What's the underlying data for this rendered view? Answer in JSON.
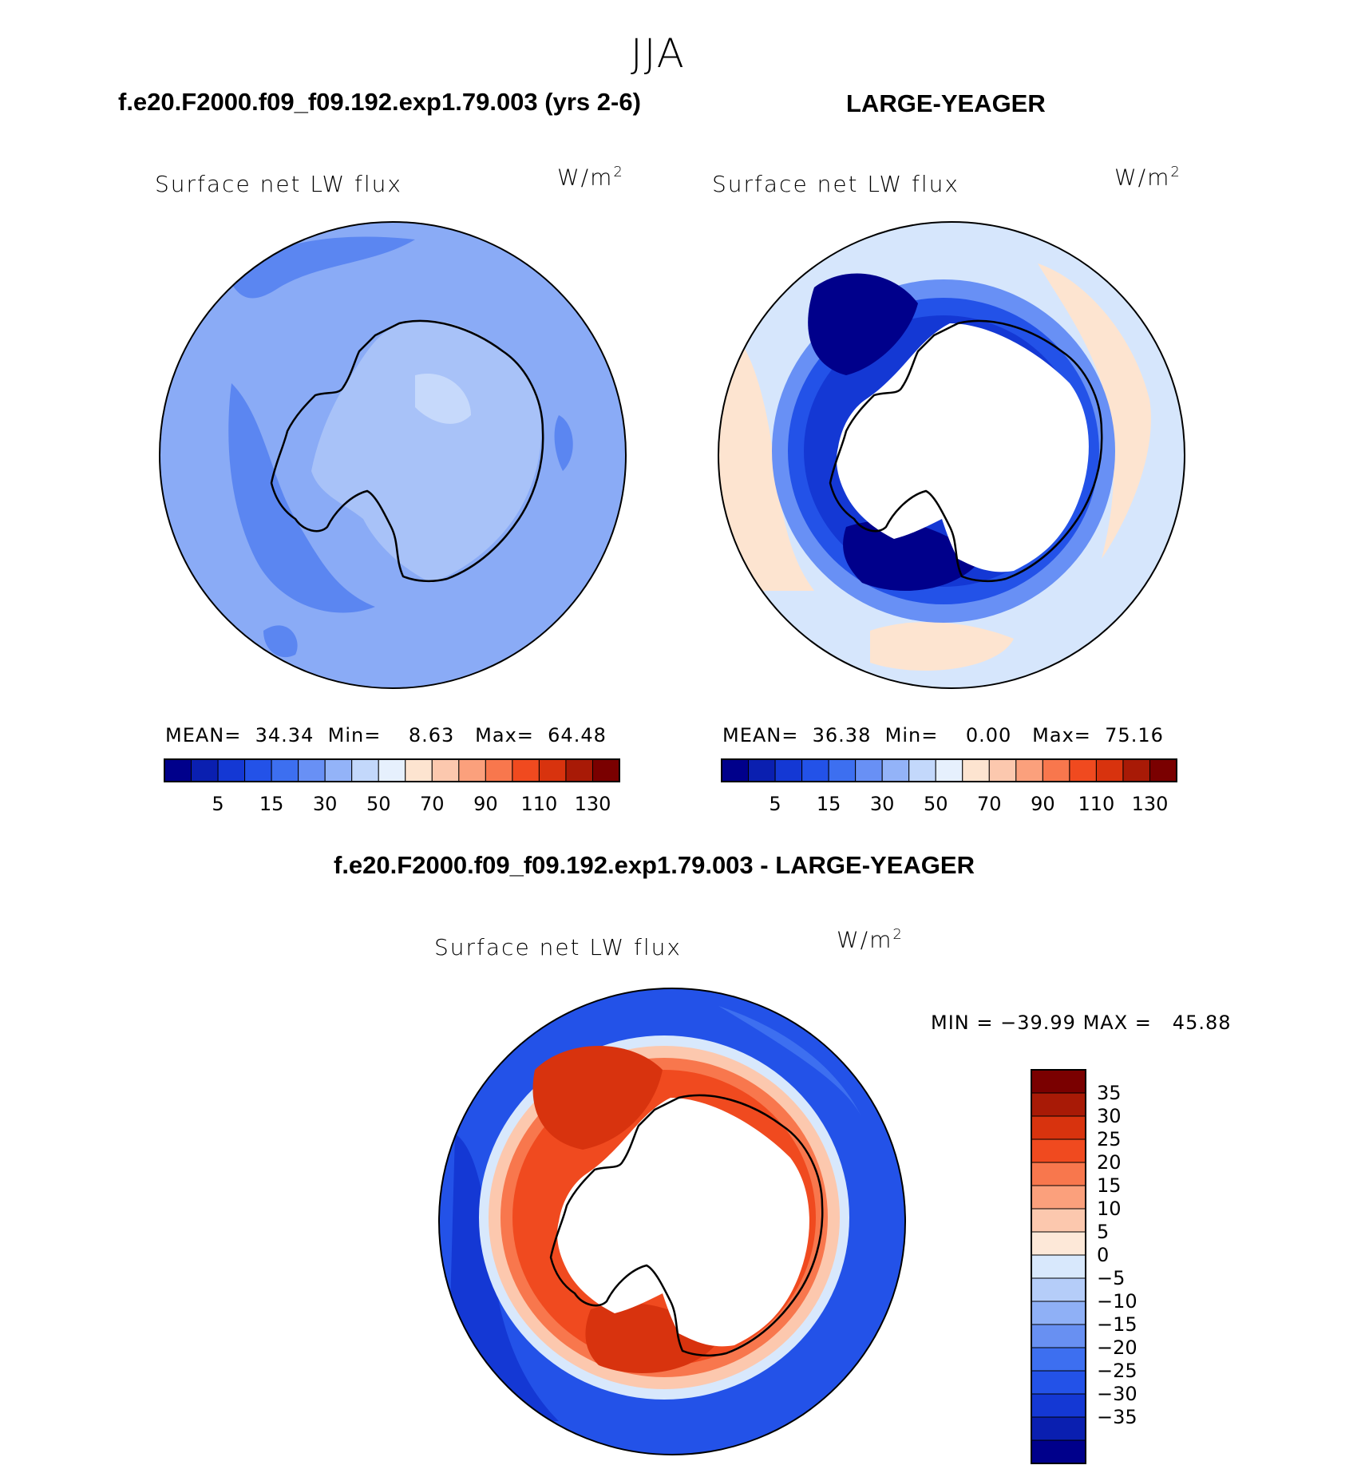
{
  "season": "JJA",
  "chart_data": [
    {
      "type": "heatmap",
      "panel": "model",
      "title": "f.e20.F2000.f09_f09.192.exp1.79.003 (yrs 2-6)",
      "field": "Surface net LW flux",
      "units": "W/m",
      "units_exp": "2",
      "stats": {
        "mean_label": "MEAN=",
        "mean": "34.34",
        "min_label": "Min=",
        "min": "8.63",
        "max_label": "Max=",
        "max": "64.48"
      },
      "levels": [
        5,
        10,
        15,
        20,
        30,
        40,
        50,
        60,
        70,
        80,
        90,
        100,
        110,
        120,
        130
      ],
      "tick_labels": [
        "5",
        "15",
        "30",
        "50",
        "70",
        "90",
        "110",
        "130"
      ],
      "colors": [
        "#00008b",
        "#0a1fb0",
        "#1438d4",
        "#2352e8",
        "#3d6ff0",
        "#6890f5",
        "#93b3f8",
        "#c3d8fb",
        "#e6f0fd",
        "#fde4d0",
        "#fcc8ae",
        "#fba07c",
        "#f8774d",
        "#f04a1f",
        "#d8330e",
        "#a81a06",
        "#7a0000"
      ]
    },
    {
      "type": "heatmap",
      "panel": "obs",
      "title": "LARGE-YEAGER",
      "field": "Surface net LW flux",
      "units": "W/m",
      "units_exp": "2",
      "stats": {
        "mean_label": "MEAN=",
        "mean": "36.38",
        "min_label": "Min=",
        "min": "0.00",
        "max_label": "Max=",
        "max": "75.16"
      },
      "levels": [
        5,
        10,
        15,
        20,
        30,
        40,
        50,
        60,
        70,
        80,
        90,
        100,
        110,
        120,
        130
      ],
      "tick_labels": [
        "5",
        "15",
        "30",
        "50",
        "70",
        "90",
        "110",
        "130"
      ],
      "colors": [
        "#00008b",
        "#0a1fb0",
        "#1438d4",
        "#2352e8",
        "#3d6ff0",
        "#6890f5",
        "#93b3f8",
        "#c3d8fb",
        "#e6f0fd",
        "#fde4d0",
        "#fcc8ae",
        "#fba07c",
        "#f8774d",
        "#f04a1f",
        "#d8330e",
        "#a81a06",
        "#7a0000"
      ]
    },
    {
      "type": "heatmap",
      "panel": "difference",
      "title": "f.e20.F2000.f09_f09.192.exp1.79.003 - LARGE-YEAGER",
      "field": "Surface net LW flux",
      "units": "W/m",
      "units_exp": "2",
      "stats": {
        "min_label": "MIN =",
        "min": "−39.99",
        "max_label": "MAX =",
        "max": "45.88"
      },
      "levels": [
        -35,
        -30,
        -25,
        -20,
        -15,
        -10,
        -5,
        0,
        5,
        10,
        15,
        20,
        25,
        30,
        35
      ],
      "tick_labels": [
        "35",
        "30",
        "25",
        "20",
        "15",
        "10",
        "5",
        "0",
        "−5",
        "−10",
        "−15",
        "−20",
        "−25",
        "−30",
        "−35"
      ],
      "colors": [
        "#7a0000",
        "#a81a06",
        "#d8330e",
        "#f04a1f",
        "#f8774d",
        "#fba07c",
        "#fcc8ae",
        "#fde8d8",
        "#d8e8fc",
        "#b5cdf9",
        "#8fb0f6",
        "#6890f2",
        "#3d6ff0",
        "#2352e8",
        "#1438d4",
        "#0a1fb0",
        "#00008b"
      ]
    }
  ]
}
